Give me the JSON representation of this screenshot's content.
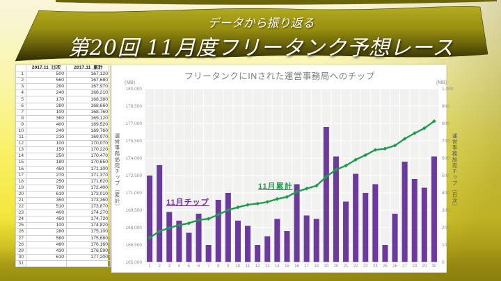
{
  "banner": {
    "subtitle": "データから振り返る",
    "title": "第20回 11月度フリータンク予想レース"
  },
  "table": {
    "corner_label": "",
    "headers": [
      "2017.11_日次",
      "2017.11_累計"
    ],
    "rows": [
      [
        "1",
        "500",
        "167,120"
      ],
      [
        "2",
        "560",
        "167,680"
      ],
      [
        "3",
        "290",
        "167,970"
      ],
      [
        "4",
        "240",
        "168,210"
      ],
      [
        "5",
        "170",
        "168,380"
      ],
      [
        "6",
        "280",
        "168,660"
      ],
      [
        "7",
        "100",
        "168,760"
      ],
      [
        "8",
        "360",
        "169,120"
      ],
      [
        "9",
        "400",
        "169,520"
      ],
      [
        "10",
        "240",
        "169,760"
      ],
      [
        "11",
        "210",
        "169,970"
      ],
      [
        "12",
        "100",
        "170,070"
      ],
      [
        "13",
        "150",
        "170,220"
      ],
      [
        "14",
        "250",
        "170,470"
      ],
      [
        "15",
        "180",
        "170,650"
      ],
      [
        "16",
        "450",
        "171,100"
      ],
      [
        "17",
        "270",
        "171,370"
      ],
      [
        "18",
        "250",
        "171,620"
      ],
      [
        "19",
        "780",
        "172,400"
      ],
      [
        "20",
        "610",
        "173,010"
      ],
      [
        "21",
        "350",
        "173,360"
      ],
      [
        "22",
        "510",
        "173,870"
      ],
      [
        "23",
        "400",
        "174,270"
      ],
      [
        "24",
        "450",
        "174,720"
      ],
      [
        "25",
        "100",
        "174,820"
      ],
      [
        "26",
        "280",
        "175,100"
      ],
      [
        "27",
        "580",
        "175,680"
      ],
      [
        "28",
        "480",
        "176,160"
      ],
      [
        "29",
        "430",
        "176,590"
      ],
      [
        "30",
        "610",
        "177,200"
      ],
      [
        "31",
        "",
        ""
      ]
    ]
  },
  "chart_data": {
    "type": "bar",
    "subtype": "bar+line combo, dual axis",
    "title": "フリータンクにINされた運営事務局へのチップ",
    "categories": [
      "1",
      "2",
      "3",
      "4",
      "5",
      "6",
      "7",
      "8",
      "9",
      "10",
      "11",
      "12",
      "13",
      "14",
      "15",
      "16",
      "17",
      "18",
      "19",
      "20",
      "21",
      "22",
      "23",
      "24",
      "25",
      "26",
      "27",
      "28",
      "29",
      "30"
    ],
    "series": [
      {
        "name": "11月チップ",
        "type": "bar",
        "axis": "right",
        "color": "#6a3a9c",
        "values": [
          500,
          560,
          290,
          240,
          170,
          280,
          100,
          360,
          400,
          240,
          210,
          100,
          150,
          250,
          180,
          450,
          270,
          250,
          780,
          610,
          350,
          510,
          400,
          450,
          100,
          280,
          580,
          480,
          430,
          610
        ]
      },
      {
        "name": "11月累計",
        "type": "line",
        "axis": "left",
        "color": "#1f9d4f",
        "values": [
          167120,
          167680,
          167970,
          168210,
          168380,
          168660,
          168760,
          169120,
          169520,
          169760,
          169970,
          170070,
          170220,
          170470,
          170650,
          171100,
          171370,
          171620,
          172400,
          173010,
          173360,
          173870,
          174270,
          174720,
          174820,
          175100,
          175680,
          176160,
          176590,
          177200
        ]
      }
    ],
    "left_axis": {
      "unit": "(MB)",
      "title": "運営事務局宛チップ（累計）",
      "min": 165000,
      "max": 180000,
      "step": 1500,
      "ticks": [
        "180,000",
        "178,500",
        "177,000",
        "175,500",
        "174,000",
        "172,500",
        "171,000",
        "169,500",
        "168,000",
        "166,500",
        "165,000"
      ]
    },
    "right_axis": {
      "unit": "(MB)",
      "title": "運営事務局宛チップ（日次）",
      "min": 0,
      "max": 1000,
      "step": 100,
      "ticks": [
        "1,000",
        "900",
        "800",
        "700",
        "600",
        "500",
        "400",
        "300",
        "200",
        "100",
        "0"
      ]
    },
    "annotations": [
      {
        "text": "11月チップ",
        "target": "bar-series",
        "color": "#7030a0"
      },
      {
        "text": "11月累計",
        "target": "line-series",
        "color": "#1f9d4f"
      }
    ],
    "grid": true,
    "plot_background": "#f1f1f0",
    "grid_color": "#ffffff",
    "legend_position": "none"
  },
  "colors": {
    "bar": "#6a3a9c",
    "line": "#1f9d4f",
    "banner_light": "#b2a920",
    "banner_dark": "#2f2b04",
    "bottom_band": "#a89c16"
  }
}
